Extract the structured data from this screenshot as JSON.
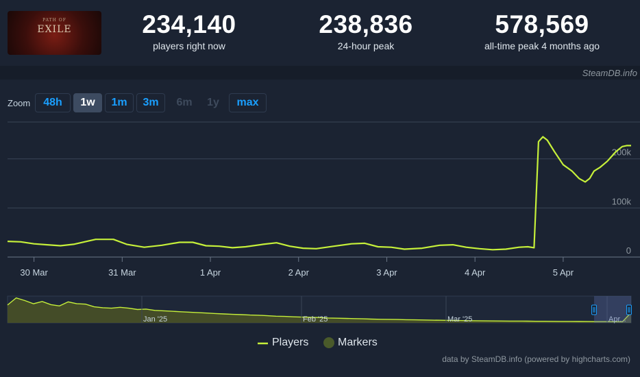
{
  "header": {
    "logo": {
      "text": "EXILE",
      "sub": "PATH OF"
    },
    "stats": [
      {
        "value": "234,140",
        "label": "players right now"
      },
      {
        "value": "238,836",
        "label": "24-hour peak"
      },
      {
        "value": "578,569",
        "label": "all-time peak 4 months ago"
      }
    ],
    "source_credit": "SteamDB.info"
  },
  "zoom": {
    "label": "Zoom",
    "buttons": [
      {
        "label": "48h",
        "state": "normal"
      },
      {
        "label": "1w",
        "state": "active"
      },
      {
        "label": "1m",
        "state": "normal"
      },
      {
        "label": "3m",
        "state": "normal"
      },
      {
        "label": "6m",
        "state": "disabled"
      },
      {
        "label": "1y",
        "state": "disabled"
      },
      {
        "label": "max",
        "state": "normal"
      }
    ]
  },
  "legend": {
    "players": "Players",
    "markers": "Markers"
  },
  "footer": {
    "credit": "data by SteamDB.info (powered by highcharts.com)"
  },
  "colors": {
    "line": "#c6f03a",
    "marker": "#4a5a2a",
    "grid": "#3a4556",
    "navigator_fill": "#4b5426"
  },
  "chart_data": {
    "type": "line",
    "title": "",
    "xlabel": "",
    "ylabel": "",
    "ylim": [
      0,
      275000
    ],
    "y_ticks": [
      {
        "value": 0,
        "label": "0"
      },
      {
        "value": 100000,
        "label": "100k"
      },
      {
        "value": 200000,
        "label": "200k"
      }
    ],
    "x_ticks": [
      {
        "t": 0.3,
        "label": "30 Mar"
      },
      {
        "t": 1.3,
        "label": "31 Mar"
      },
      {
        "t": 2.3,
        "label": "1 Apr"
      },
      {
        "t": 3.3,
        "label": "2 Apr"
      },
      {
        "t": 4.3,
        "label": "3 Apr"
      },
      {
        "t": 5.3,
        "label": "4 Apr"
      },
      {
        "t": 6.3,
        "label": "5 Apr"
      }
    ],
    "xlim": [
      0,
      7.07
    ],
    "series": [
      {
        "name": "Players",
        "x": [
          0,
          0.15,
          0.3,
          0.45,
          0.6,
          0.75,
          0.9,
          1.0,
          1.1,
          1.2,
          1.35,
          1.55,
          1.75,
          1.95,
          2.1,
          2.25,
          2.4,
          2.55,
          2.7,
          2.9,
          3.05,
          3.2,
          3.35,
          3.5,
          3.7,
          3.9,
          4.05,
          4.2,
          4.35,
          4.5,
          4.7,
          4.9,
          5.05,
          5.2,
          5.35,
          5.5,
          5.65,
          5.8,
          5.9,
          5.97,
          6.02,
          6.07,
          6.12,
          6.2,
          6.3,
          6.4,
          6.48,
          6.55,
          6.6,
          6.65,
          6.72,
          6.8,
          6.9,
          6.97,
          7.02,
          7.07
        ],
        "y": [
          32000,
          31000,
          27000,
          25000,
          23000,
          26000,
          32000,
          36000,
          36000,
          36000,
          26000,
          20000,
          24000,
          30000,
          30000,
          23000,
          22000,
          19000,
          21000,
          26000,
          29000,
          22000,
          18000,
          17000,
          22000,
          27000,
          28000,
          21000,
          20000,
          16000,
          18000,
          24000,
          25000,
          20000,
          17000,
          15000,
          16000,
          20000,
          21000,
          19000,
          235000,
          245000,
          238000,
          215000,
          188000,
          175000,
          160000,
          153000,
          160000,
          175000,
          183000,
          195000,
          215000,
          225000,
          227000,
          227000
        ]
      }
    ],
    "navigator": {
      "x_ticks": [
        {
          "label": "Jan '25"
        },
        {
          "label": "Feb '25"
        },
        {
          "label": "Mar '25"
        },
        {
          "label": "Apr..."
        }
      ],
      "series": {
        "name": "Players",
        "values": [
          400000,
          560000,
          500000,
          430000,
          480000,
          410000,
          380000,
          470000,
          430000,
          420000,
          360000,
          340000,
          330000,
          350000,
          330000,
          300000,
          310000,
          280000,
          270000,
          260000,
          250000,
          240000,
          230000,
          220000,
          210000,
          200000,
          190000,
          185000,
          175000,
          170000,
          160000,
          150000,
          145000,
          135000,
          130000,
          125000,
          120000,
          110000,
          105000,
          100000,
          95000,
          90000,
          85000,
          80000,
          78000,
          75000,
          70000,
          68000,
          65000,
          60000,
          58000,
          55000,
          52000,
          50000,
          48000,
          45000,
          43000,
          42000,
          40000,
          40000,
          38000,
          36000,
          35000,
          34000,
          33000,
          32000,
          31000,
          30000,
          28000,
          27000,
          26000,
          25000,
          230000
        ]
      }
    }
  }
}
